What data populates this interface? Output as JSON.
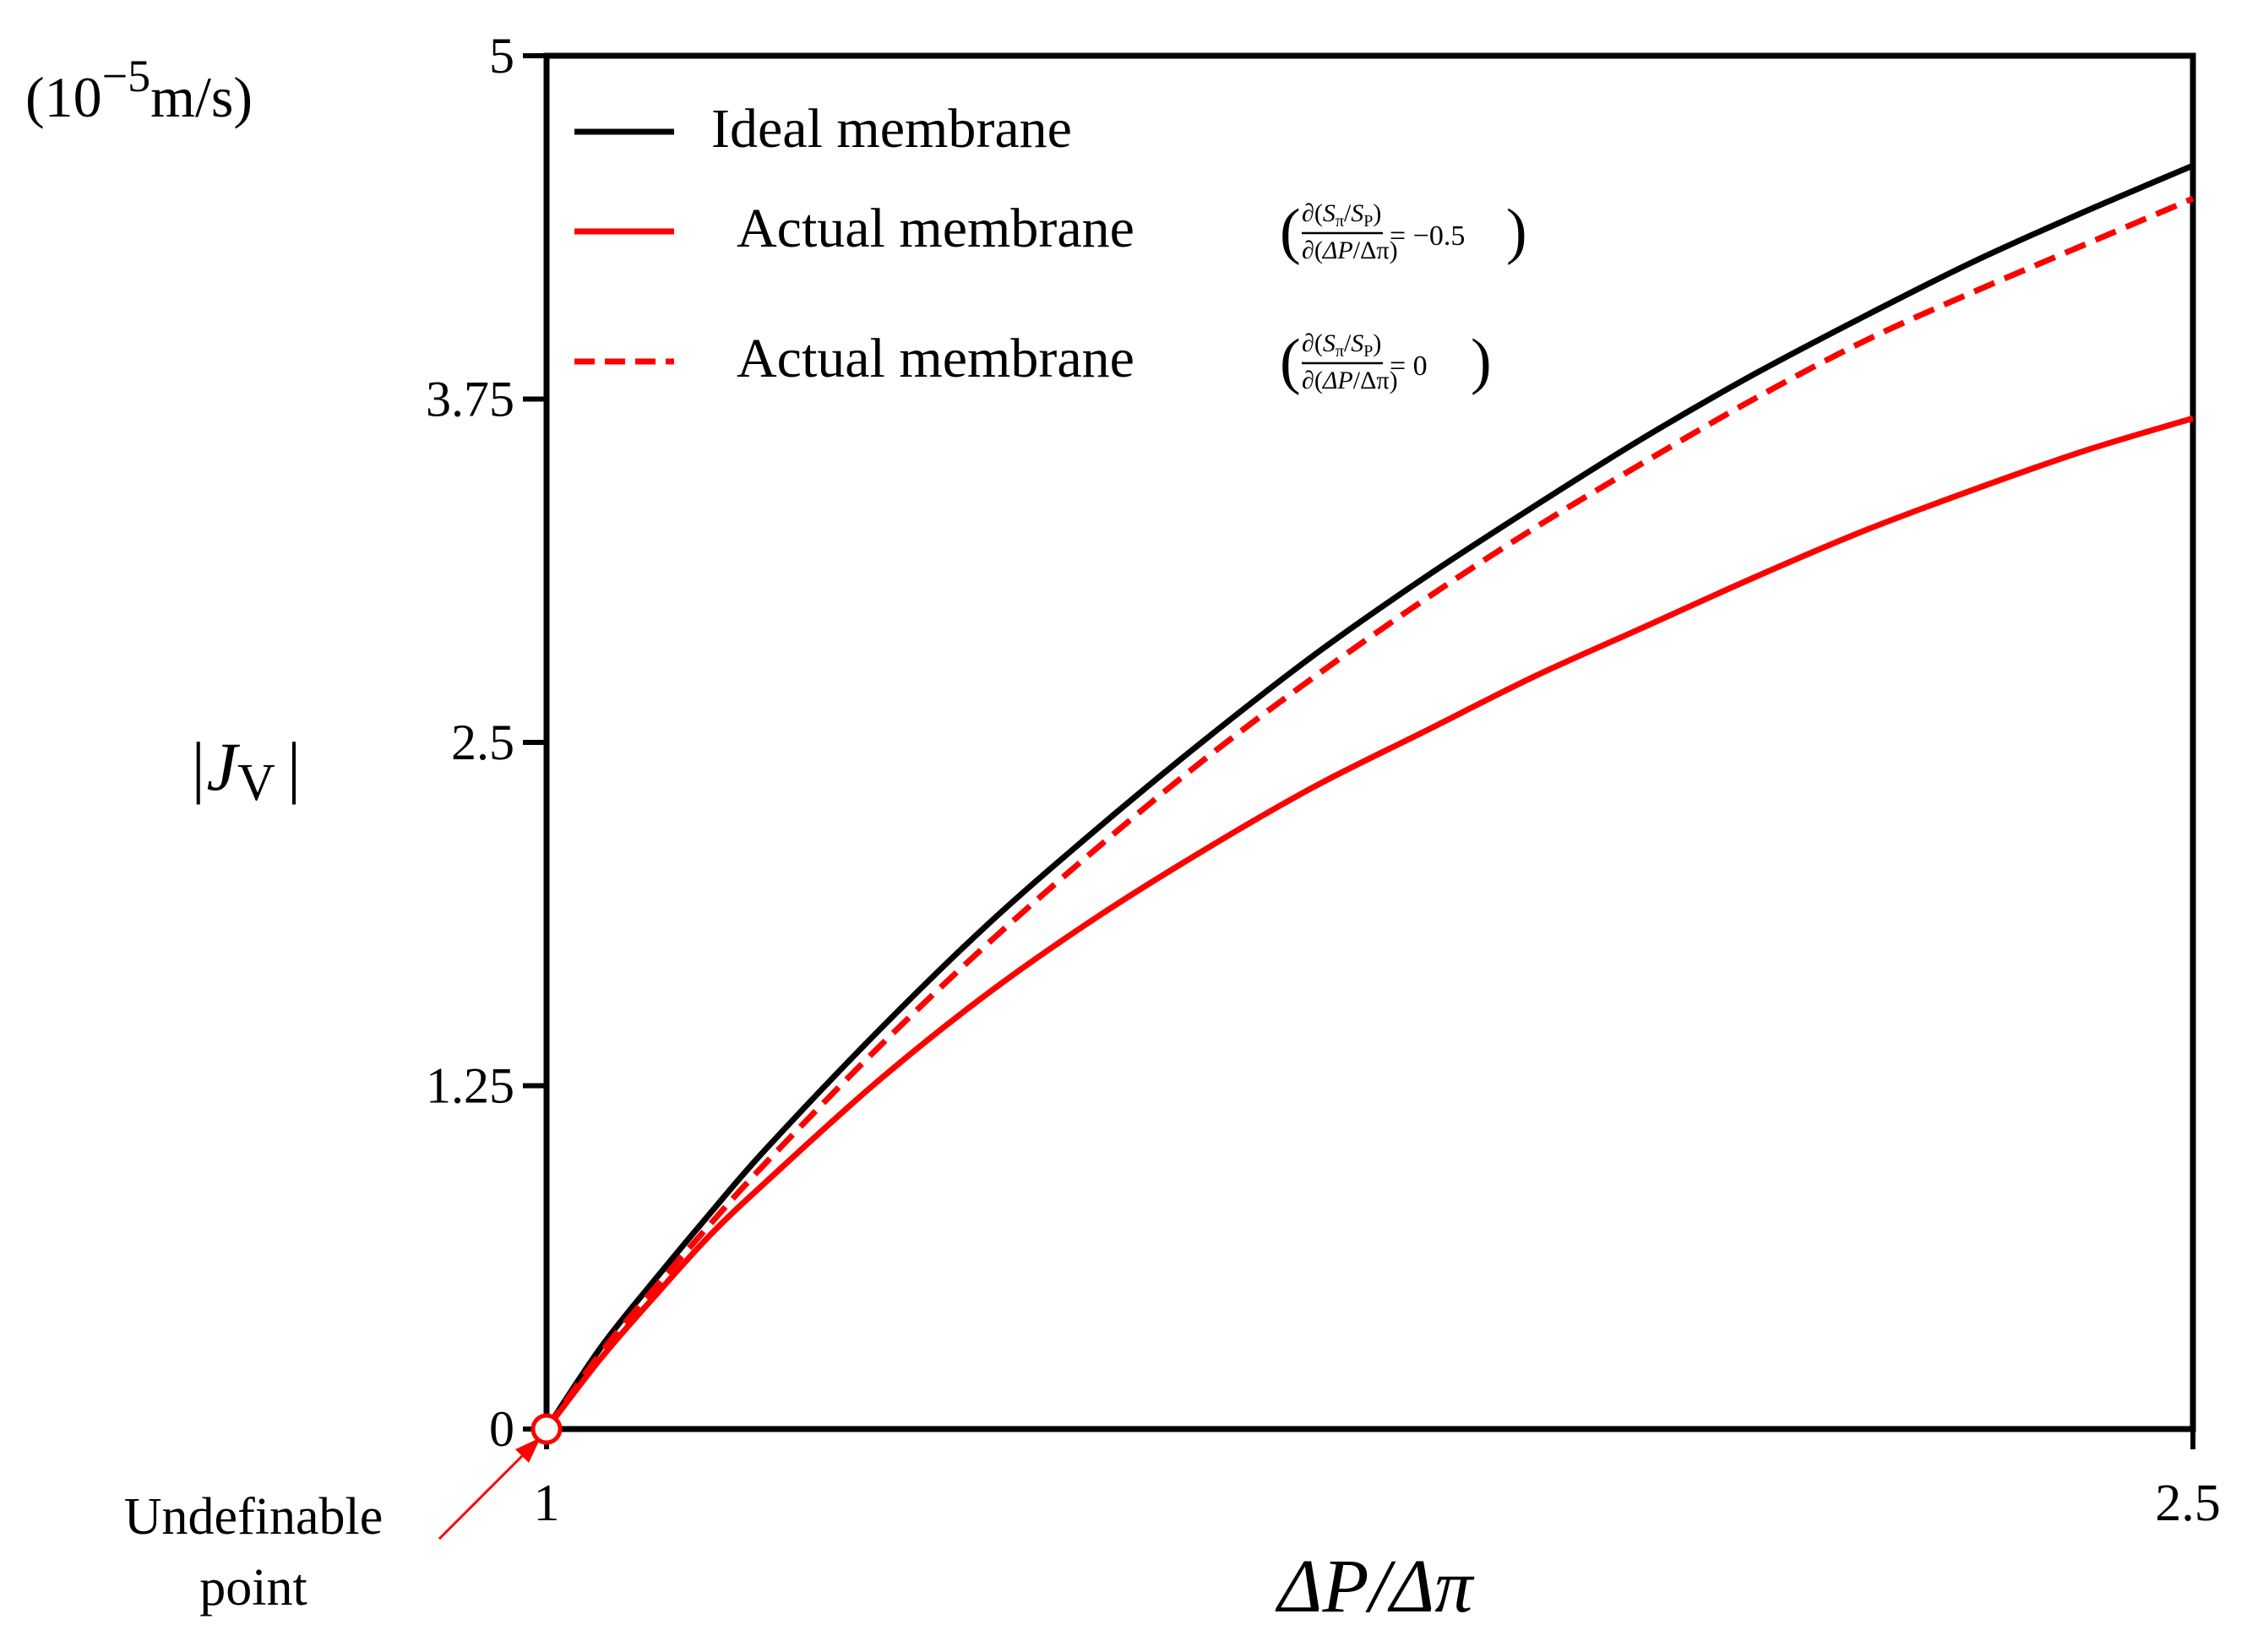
{
  "chart_data": {
    "type": "line",
    "title": "",
    "xlabel": "ΔP/Δπ",
    "ylabel": "|J_V|",
    "ylabel_main": "|J",
    "ylabel_sub": "V",
    "ylabel_close": "|",
    "unit_label": {
      "prefix": "(10",
      "exponent": "−5",
      "suffix": "m/s)"
    },
    "xlim": [
      1,
      2.5
    ],
    "ylim": [
      0,
      5
    ],
    "x_ticks": [
      1,
      2.5
    ],
    "x_tick_labels": [
      "1",
      "2.5"
    ],
    "y_ticks": [
      0,
      1.25,
      2.5,
      3.75,
      5
    ],
    "y_tick_labels": [
      "0",
      "1.25",
      "2.5",
      "3.75",
      "5"
    ],
    "grid": false,
    "legend_position": "top-left",
    "series": [
      {
        "name": "Ideal membrane",
        "color": "#000000",
        "dash": "solid",
        "x": [
          1.0,
          1.05,
          1.1,
          1.15,
          1.2,
          1.3,
          1.4,
          1.5,
          1.6,
          1.7,
          1.8,
          1.9,
          2.0,
          2.1,
          2.2,
          2.3,
          2.4,
          2.5
        ],
        "values": [
          0.0,
          0.3,
          0.55,
          0.79,
          1.02,
          1.44,
          1.83,
          2.18,
          2.51,
          2.82,
          3.1,
          3.36,
          3.61,
          3.84,
          4.05,
          4.25,
          4.43,
          4.6
        ]
      },
      {
        "name": "Actual membrane",
        "legend_condition": "= −0.5",
        "color": "#ff0000",
        "dash": "solid",
        "x": [
          1.0,
          1.05,
          1.1,
          1.15,
          1.2,
          1.3,
          1.4,
          1.5,
          1.6,
          1.7,
          1.8,
          1.9,
          2.0,
          2.1,
          2.2,
          2.3,
          2.4,
          2.5
        ],
        "values": [
          0.0,
          0.26,
          0.49,
          0.71,
          0.9,
          1.26,
          1.58,
          1.86,
          2.11,
          2.34,
          2.54,
          2.74,
          2.92,
          3.1,
          3.27,
          3.42,
          3.56,
          3.68
        ]
      },
      {
        "name": "Actual membrane",
        "legend_condition": "= 0",
        "color": "#ff0000",
        "dash": "dashed",
        "x": [
          1.0,
          1.05,
          1.1,
          1.15,
          1.2,
          1.3,
          1.4,
          1.5,
          1.6,
          1.7,
          1.8,
          1.9,
          2.0,
          2.1,
          2.2,
          2.3,
          2.4,
          2.5
        ],
        "values": [
          0.0,
          0.28,
          0.52,
          0.75,
          0.97,
          1.38,
          1.76,
          2.11,
          2.44,
          2.74,
          3.02,
          3.28,
          3.52,
          3.75,
          3.96,
          4.14,
          4.31,
          4.48
        ]
      }
    ],
    "legend_fraction": {
      "partial": "∂",
      "num_top": "S",
      "num_top_sub": "π",
      "num_bottom": "S",
      "num_bottom_sub": "P",
      "den_top": "ΔP",
      "den_bottom": "Δπ"
    },
    "annotation": {
      "text_line1": "Undefinable",
      "text_line2": "point",
      "x": 1,
      "y": 0
    }
  }
}
